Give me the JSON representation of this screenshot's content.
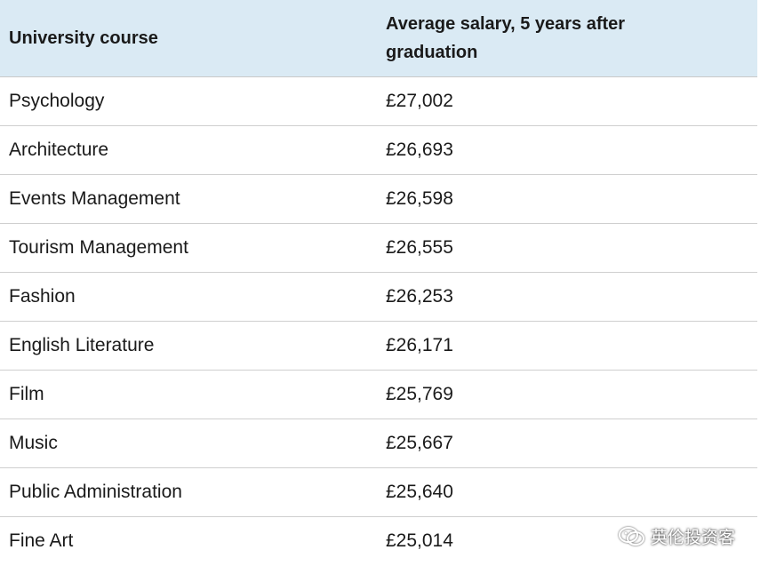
{
  "table": {
    "headers": [
      "University course",
      "Average salary, 5 years after graduation"
    ],
    "rows": [
      [
        "Psychology",
        "£27,002"
      ],
      [
        "Architecture",
        "£26,693"
      ],
      [
        "Events Management",
        "£26,598"
      ],
      [
        "Tourism Management",
        "£26,555"
      ],
      [
        "Fashion",
        "£26,253"
      ],
      [
        "English Literature",
        "£26,171"
      ],
      [
        "Film",
        "£25,769"
      ],
      [
        "Music",
        "£25,667"
      ],
      [
        "Public Administration",
        "£25,640"
      ],
      [
        "Fine Art",
        "£25,014"
      ]
    ]
  },
  "chart_data": {
    "type": "table",
    "columns": [
      "University course",
      "Average salary, 5 years after graduation"
    ],
    "rows": [
      [
        "Psychology",
        "£27,002"
      ],
      [
        "Architecture",
        "£26,693"
      ],
      [
        "Events Management",
        "£26,598"
      ],
      [
        "Tourism Management",
        "£26,555"
      ],
      [
        "Fashion",
        "£26,253"
      ],
      [
        "English Literature",
        "£26,171"
      ],
      [
        "Film",
        "£25,769"
      ],
      [
        "Music",
        "£25,667"
      ],
      [
        "Public Administration",
        "£25,640"
      ],
      [
        "Fine Art",
        "£25,014"
      ]
    ]
  },
  "watermark": {
    "text": "英伦投资客",
    "icon": "wechat-icon"
  },
  "colors": {
    "header_background": "#daeaf4",
    "row_divider": "#cfcfcf",
    "text": "#1a1a1a"
  }
}
